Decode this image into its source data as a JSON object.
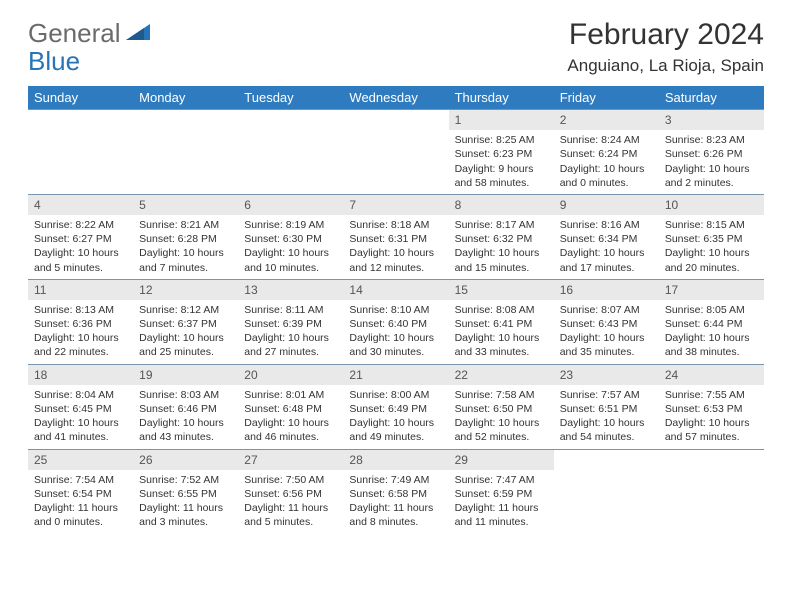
{
  "brand": {
    "word1": "General",
    "word2": "Blue"
  },
  "title": "February 2024",
  "location": "Anguiano, La Rioja, Spain",
  "colors": {
    "header_bg": "#2f7bbf",
    "header_text": "#ffffff",
    "daynum_bg": "#e9e9e9",
    "rule": "#7a94ab",
    "logo_gray": "#6b6b6b",
    "logo_blue": "#2874b8"
  },
  "weekdays": [
    "Sunday",
    "Monday",
    "Tuesday",
    "Wednesday",
    "Thursday",
    "Friday",
    "Saturday"
  ],
  "weeks": [
    [
      null,
      null,
      null,
      null,
      {
        "n": "1",
        "sr": "8:25 AM",
        "ss": "6:23 PM",
        "dl": "9 hours and 58 minutes."
      },
      {
        "n": "2",
        "sr": "8:24 AM",
        "ss": "6:24 PM",
        "dl": "10 hours and 0 minutes."
      },
      {
        "n": "3",
        "sr": "8:23 AM",
        "ss": "6:26 PM",
        "dl": "10 hours and 2 minutes."
      }
    ],
    [
      {
        "n": "4",
        "sr": "8:22 AM",
        "ss": "6:27 PM",
        "dl": "10 hours and 5 minutes."
      },
      {
        "n": "5",
        "sr": "8:21 AM",
        "ss": "6:28 PM",
        "dl": "10 hours and 7 minutes."
      },
      {
        "n": "6",
        "sr": "8:19 AM",
        "ss": "6:30 PM",
        "dl": "10 hours and 10 minutes."
      },
      {
        "n": "7",
        "sr": "8:18 AM",
        "ss": "6:31 PM",
        "dl": "10 hours and 12 minutes."
      },
      {
        "n": "8",
        "sr": "8:17 AM",
        "ss": "6:32 PM",
        "dl": "10 hours and 15 minutes."
      },
      {
        "n": "9",
        "sr": "8:16 AM",
        "ss": "6:34 PM",
        "dl": "10 hours and 17 minutes."
      },
      {
        "n": "10",
        "sr": "8:15 AM",
        "ss": "6:35 PM",
        "dl": "10 hours and 20 minutes."
      }
    ],
    [
      {
        "n": "11",
        "sr": "8:13 AM",
        "ss": "6:36 PM",
        "dl": "10 hours and 22 minutes."
      },
      {
        "n": "12",
        "sr": "8:12 AM",
        "ss": "6:37 PM",
        "dl": "10 hours and 25 minutes."
      },
      {
        "n": "13",
        "sr": "8:11 AM",
        "ss": "6:39 PM",
        "dl": "10 hours and 27 minutes."
      },
      {
        "n": "14",
        "sr": "8:10 AM",
        "ss": "6:40 PM",
        "dl": "10 hours and 30 minutes."
      },
      {
        "n": "15",
        "sr": "8:08 AM",
        "ss": "6:41 PM",
        "dl": "10 hours and 33 minutes."
      },
      {
        "n": "16",
        "sr": "8:07 AM",
        "ss": "6:43 PM",
        "dl": "10 hours and 35 minutes."
      },
      {
        "n": "17",
        "sr": "8:05 AM",
        "ss": "6:44 PM",
        "dl": "10 hours and 38 minutes."
      }
    ],
    [
      {
        "n": "18",
        "sr": "8:04 AM",
        "ss": "6:45 PM",
        "dl": "10 hours and 41 minutes."
      },
      {
        "n": "19",
        "sr": "8:03 AM",
        "ss": "6:46 PM",
        "dl": "10 hours and 43 minutes."
      },
      {
        "n": "20",
        "sr": "8:01 AM",
        "ss": "6:48 PM",
        "dl": "10 hours and 46 minutes."
      },
      {
        "n": "21",
        "sr": "8:00 AM",
        "ss": "6:49 PM",
        "dl": "10 hours and 49 minutes."
      },
      {
        "n": "22",
        "sr": "7:58 AM",
        "ss": "6:50 PM",
        "dl": "10 hours and 52 minutes."
      },
      {
        "n": "23",
        "sr": "7:57 AM",
        "ss": "6:51 PM",
        "dl": "10 hours and 54 minutes."
      },
      {
        "n": "24",
        "sr": "7:55 AM",
        "ss": "6:53 PM",
        "dl": "10 hours and 57 minutes."
      }
    ],
    [
      {
        "n": "25",
        "sr": "7:54 AM",
        "ss": "6:54 PM",
        "dl": "11 hours and 0 minutes."
      },
      {
        "n": "26",
        "sr": "7:52 AM",
        "ss": "6:55 PM",
        "dl": "11 hours and 3 minutes."
      },
      {
        "n": "27",
        "sr": "7:50 AM",
        "ss": "6:56 PM",
        "dl": "11 hours and 5 minutes."
      },
      {
        "n": "28",
        "sr": "7:49 AM",
        "ss": "6:58 PM",
        "dl": "11 hours and 8 minutes."
      },
      {
        "n": "29",
        "sr": "7:47 AM",
        "ss": "6:59 PM",
        "dl": "11 hours and 11 minutes."
      },
      null,
      null
    ]
  ],
  "labels": {
    "sunrise": "Sunrise: ",
    "sunset": "Sunset: ",
    "daylight": "Daylight: "
  }
}
